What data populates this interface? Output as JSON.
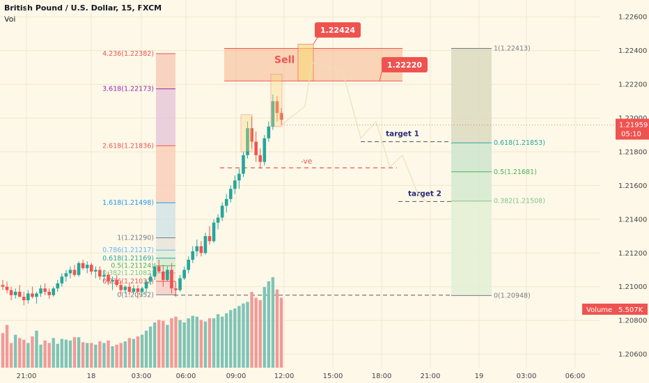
{
  "header": {
    "symbol": "British Pound / U.S. Dollar, 15, FXCM",
    "indicator": "Vol"
  },
  "chart_data": {
    "type": "candlestick",
    "symbol": "GBPUSD",
    "timeframe": "15",
    "ylim": [
      1.2052,
      1.227
    ],
    "y_ticks": [
      1.206,
      1.208,
      1.21,
      1.212,
      1.214,
      1.216,
      1.218,
      1.22,
      1.222,
      1.224,
      1.226
    ],
    "x_ticks": [
      "21:00",
      "18",
      "03:00",
      "06:00",
      "09:00",
      "12:00",
      "15:00",
      "18:00",
      "21:00",
      "19",
      "03:00",
      "06:00"
    ],
    "colors": {
      "up": "#26a69a",
      "down": "#ef5350",
      "up_vol": "#7fc4b6",
      "down_vol": "#f19a98",
      "sell_zone": "#f4a97a",
      "price_tag": "#ef5350"
    },
    "candles_ohlc": [
      [
        1.2101,
        1.2104,
        1.2098,
        1.21
      ],
      [
        1.21,
        1.2103,
        1.2096,
        1.2098
      ],
      [
        1.2098,
        1.21,
        1.2092,
        1.2095
      ],
      [
        1.2095,
        1.2099,
        1.2093,
        1.2097
      ],
      [
        1.2097,
        1.2101,
        1.2094,
        1.2094
      ],
      [
        1.2094,
        1.2097,
        1.2089,
        1.2092
      ],
      [
        1.2092,
        1.2098,
        1.209,
        1.2096
      ],
      [
        1.2096,
        1.21,
        1.2093,
        1.2094
      ],
      [
        1.2094,
        1.2097,
        1.209,
        1.2096
      ],
      [
        1.2096,
        1.2101,
        1.2094,
        1.2099
      ],
      [
        1.2099,
        1.2102,
        1.2095,
        1.2097
      ],
      [
        1.2097,
        1.2099,
        1.2093,
        1.2095
      ],
      [
        1.2095,
        1.21,
        1.2094,
        1.2099
      ],
      [
        1.2099,
        1.2104,
        1.2097,
        1.2102
      ],
      [
        1.2102,
        1.2108,
        1.21,
        1.2106
      ],
      [
        1.2106,
        1.211,
        1.2103,
        1.2108
      ],
      [
        1.2108,
        1.2112,
        1.2105,
        1.211
      ],
      [
        1.211,
        1.2113,
        1.2106,
        1.2107
      ],
      [
        1.2107,
        1.2115,
        1.2106,
        1.2114
      ],
      [
        1.2114,
        1.2116,
        1.211,
        1.2111
      ],
      [
        1.2111,
        1.2115,
        1.2108,
        1.2113
      ],
      [
        1.2113,
        1.2114,
        1.2107,
        1.2109
      ],
      [
        1.2109,
        1.2112,
        1.2105,
        1.211
      ],
      [
        1.211,
        1.2112,
        1.2104,
        1.2106
      ],
      [
        1.2106,
        1.211,
        1.2103,
        1.2107
      ],
      [
        1.2107,
        1.2109,
        1.2101,
        1.2103
      ],
      [
        1.2103,
        1.2106,
        1.2098,
        1.2104
      ],
      [
        1.2104,
        1.2107,
        1.21,
        1.2101
      ],
      [
        1.2101,
        1.2103,
        1.2096,
        1.2098
      ],
      [
        1.2098,
        1.2101,
        1.2096,
        1.21
      ],
      [
        1.21,
        1.2102,
        1.2095,
        1.2097
      ],
      [
        1.2097,
        1.2101,
        1.2096,
        1.2099
      ],
      [
        1.2099,
        1.2101,
        1.2093,
        1.2097
      ],
      [
        1.2097,
        1.21,
        1.2094,
        1.2099
      ],
      [
        1.2099,
        1.2104,
        1.2096,
        1.2103
      ],
      [
        1.2103,
        1.2108,
        1.2101,
        1.2106
      ],
      [
        1.2106,
        1.2114,
        1.2104,
        1.2112
      ],
      [
        1.2112,
        1.2116,
        1.2108,
        1.2109
      ],
      [
        1.2109,
        1.2113,
        1.21,
        1.2104
      ],
      [
        1.2104,
        1.2112,
        1.2103,
        1.211
      ],
      [
        1.211,
        1.2114,
        1.2096,
        1.2099
      ],
      [
        1.2099,
        1.2103,
        1.2094,
        1.2098
      ],
      [
        1.2098,
        1.2107,
        1.2097,
        1.2105
      ],
      [
        1.2105,
        1.2112,
        1.2104,
        1.211
      ],
      [
        1.211,
        1.2118,
        1.2108,
        1.2116
      ],
      [
        1.2116,
        1.2124,
        1.2114,
        1.2121
      ],
      [
        1.2121,
        1.2128,
        1.2118,
        1.2124
      ],
      [
        1.2124,
        1.2127,
        1.2118,
        1.212
      ],
      [
        1.212,
        1.2132,
        1.2119,
        1.213
      ],
      [
        1.213,
        1.2136,
        1.2125,
        1.2127
      ],
      [
        1.2127,
        1.214,
        1.2126,
        1.2138
      ],
      [
        1.2138,
        1.2143,
        1.2134,
        1.2141
      ],
      [
        1.2141,
        1.215,
        1.2139,
        1.2148
      ],
      [
        1.2148,
        1.2155,
        1.2144,
        1.2152
      ],
      [
        1.2152,
        1.216,
        1.215,
        1.2158
      ],
      [
        1.2158,
        1.2166,
        1.2155,
        1.2163
      ],
      [
        1.2163,
        1.217,
        1.2158,
        1.2167
      ],
      [
        1.2167,
        1.218,
        1.2165,
        1.2178
      ],
      [
        1.2178,
        1.2198,
        1.2176,
        1.2194
      ],
      [
        1.2194,
        1.2201,
        1.2182,
        1.2186
      ],
      [
        1.2186,
        1.2192,
        1.2174,
        1.2178
      ],
      [
        1.2178,
        1.2182,
        1.217,
        1.2174
      ],
      [
        1.2174,
        1.219,
        1.2172,
        1.2188
      ],
      [
        1.2188,
        1.2198,
        1.2186,
        1.2195
      ],
      [
        1.2195,
        1.2214,
        1.2193,
        1.221
      ],
      [
        1.221,
        1.2213,
        1.2198,
        1.2203
      ],
      [
        1.2203,
        1.2206,
        1.2196,
        1.2199
      ]
    ],
    "volume": [
      42,
      52,
      30,
      40,
      36,
      34,
      30,
      38,
      45,
      28,
      33,
      30,
      36,
      29,
      35,
      34,
      33,
      37,
      37,
      31,
      30,
      30,
      28,
      32,
      30,
      33,
      26,
      28,
      30,
      32,
      36,
      35,
      38,
      40,
      45,
      50,
      55,
      58,
      57,
      52,
      60,
      62,
      58,
      55,
      60,
      63,
      62,
      58,
      56,
      60,
      60,
      65,
      62,
      66,
      70,
      72,
      75,
      78,
      80,
      92,
      85,
      82,
      98,
      105,
      110,
      95,
      85
    ],
    "fib_extension": [
      {
        "ratio": "4.236",
        "price": 1.22382,
        "label": "4.236(1.22382)",
        "color": "#ef5350"
      },
      {
        "ratio": "3.618",
        "price": 1.22173,
        "label": "3.618(1.22173)",
        "color": "#9c27b0"
      },
      {
        "ratio": "2.618",
        "price": 1.21836,
        "label": "2.618(1.21836)",
        "color": "#ef5350"
      },
      {
        "ratio": "1.618",
        "price": 1.21498,
        "label": "1.618(1.21498)",
        "color": "#2196f3"
      },
      {
        "ratio": "1",
        "price": 1.2129,
        "label": "1(1.21290)",
        "color": "#787b86"
      },
      {
        "ratio": "0.786",
        "price": 1.21217,
        "label": "0.786(1.21217)",
        "color": "#64b5f6"
      },
      {
        "ratio": "0.618",
        "price": 1.21169,
        "label": "0.618(1.21169)",
        "color": "#26a69a"
      },
      {
        "ratio": "0.5",
        "price": 1.21124,
        "label": "0.5(1.21124)",
        "color": "#4caf50"
      },
      {
        "ratio": "0.382",
        "price": 1.21082,
        "label": "0.382(1.21082)",
        "color": "#81c784"
      },
      {
        "ratio": "0.236",
        "price": 1.21032,
        "label": "0.236(1.21032)",
        "color": "#ef5350"
      },
      {
        "ratio": "0",
        "price": 1.20952,
        "label": "0(1.20952)",
        "color": "#787b86"
      }
    ],
    "fib_retracement": [
      {
        "ratio": "1",
        "price": 1.22413,
        "label": "1(1.22413)",
        "color": "#787b86"
      },
      {
        "ratio": "0.618",
        "price": 1.21853,
        "label": "0.618(1.21853)",
        "color": "#26a69a"
      },
      {
        "ratio": "0.5",
        "price": 1.21681,
        "label": "0.5(1.21681)",
        "color": "#4caf50"
      },
      {
        "ratio": "0.382",
        "price": 1.21508,
        "label": "0.382(1.21508)",
        "color": "#81c784"
      },
      {
        "ratio": "0",
        "price": 1.20948,
        "label": "0(1.20948)",
        "color": "#787b86"
      }
    ],
    "sell_zone": {
      "label": "Sell",
      "top": 1.22413,
      "bottom": 1.2222
    },
    "callouts": [
      {
        "label": "1.22424",
        "price": 1.22424
      },
      {
        "label": "1.22220",
        "price": 1.2222
      }
    ],
    "horizontal_levels": [
      {
        "label": "-ve",
        "price": 1.21705
      },
      {
        "label": "target 1",
        "price": 1.2186
      },
      {
        "label": "target 2",
        "price": 1.21505
      },
      {
        "label": "",
        "price": 1.2095
      }
    ],
    "price_tag": {
      "price_label": "1.21959",
      "countdown": "05:10",
      "price": 1.21959
    },
    "volume_tag": {
      "label": "Volume",
      "value": "5.507K"
    },
    "projected_path": [
      [
        1.21959,
        1.224
      ],
      [
        1.2238,
        1.2225
      ],
      [
        1.2234,
        1.2188
      ],
      [
        1.2205,
        1.2171
      ],
      [
        1.2185,
        1.216
      ]
    ]
  }
}
